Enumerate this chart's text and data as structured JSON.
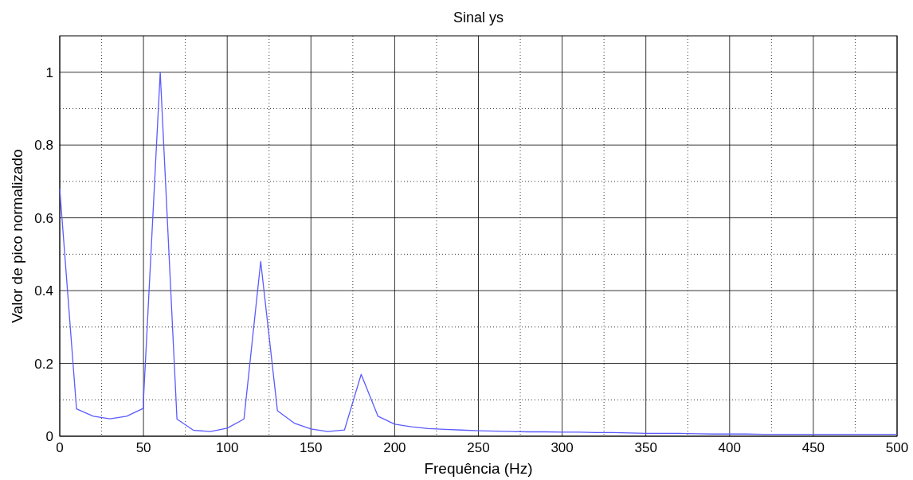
{
  "chart_data": {
    "type": "line",
    "title": "Sinal ys",
    "xlabel": "Frequência (Hz)",
    "ylabel": "Valor de pico normalizado",
    "series": [
      {
        "color": "#5a5aff",
        "x": [
          0,
          10,
          20,
          30,
          40,
          50,
          50,
          60,
          70,
          80,
          90,
          100,
          110,
          120,
          130,
          140,
          150,
          160,
          170,
          180,
          190,
          200,
          210,
          220,
          230,
          240,
          250,
          260,
          270,
          280,
          290,
          300,
          310,
          320,
          330,
          340,
          350,
          360,
          370,
          380,
          390,
          400,
          410,
          420,
          430,
          440,
          450,
          460,
          470,
          480,
          490,
          500
        ],
        "values": [
          0.68,
          0.075,
          0.055,
          0.048,
          0.055,
          0.077,
          0.1,
          1.0,
          0.047,
          0.016,
          0.013,
          0.022,
          0.047,
          0.48,
          0.07,
          0.036,
          0.02,
          0.013,
          0.017,
          0.17,
          0.055,
          0.033,
          0.026,
          0.021,
          0.019,
          0.017,
          0.015,
          0.014,
          0.013,
          0.012,
          0.012,
          0.011,
          0.011,
          0.01,
          0.01,
          0.009,
          0.008,
          0.008,
          0.008,
          0.007,
          0.006,
          0.006,
          0.006,
          0.005,
          0.005,
          0.005,
          0.005,
          0.005,
          0.005,
          0.005,
          0.005,
          0.005
        ]
      }
    ],
    "xlim": [
      0,
      500
    ],
    "xticks": [
      0,
      50,
      100,
      150,
      200,
      250,
      300,
      350,
      400,
      450,
      500
    ],
    "ylim": [
      0,
      1.1
    ],
    "yticks": [
      0,
      0.2,
      0.4,
      0.6,
      0.8,
      1
    ],
    "grid": true,
    "marker": "none",
    "line_style": "solid"
  }
}
